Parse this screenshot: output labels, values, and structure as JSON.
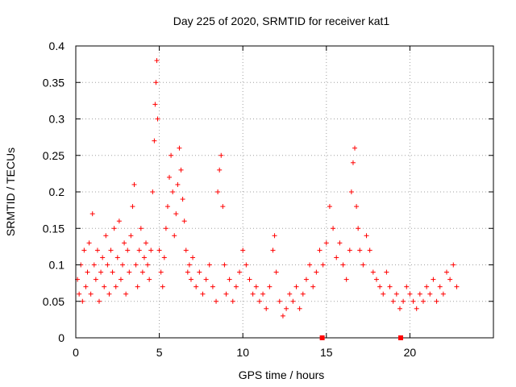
{
  "chart_data": {
    "type": "scatter",
    "title": "Day 225 of 2020, SRMTID for receiver kat1",
    "xlabel": "GPS time / hours",
    "ylabel": "SRMTID / TECUs",
    "xlim": [
      0,
      25
    ],
    "ylim": [
      0,
      0.4
    ],
    "xticks": [
      0,
      5,
      10,
      15,
      20
    ],
    "xtick_labels": [
      "0",
      "5",
      "10",
      "15",
      "20"
    ],
    "yticks": [
      0,
      0.05,
      0.1,
      0.15,
      0.2,
      0.25,
      0.3,
      0.35,
      0.4
    ],
    "ytick_labels": [
      "0",
      "0.05",
      "0.1",
      "0.15",
      "0.2",
      "0.25",
      "0.3",
      "0.35",
      "0.4"
    ],
    "grid": true,
    "marker": "plus",
    "color": "#ff0000",
    "series": [
      {
        "name": "SRMTID",
        "points": [
          [
            0.1,
            0.08
          ],
          [
            0.2,
            0.06
          ],
          [
            0.3,
            0.1
          ],
          [
            0.4,
            0.05
          ],
          [
            0.5,
            0.12
          ],
          [
            0.6,
            0.07
          ],
          [
            0.7,
            0.09
          ],
          [
            0.8,
            0.13
          ],
          [
            0.9,
            0.06
          ],
          [
            1.0,
            0.17
          ],
          [
            1.1,
            0.1
          ],
          [
            1.2,
            0.08
          ],
          [
            1.3,
            0.12
          ],
          [
            1.4,
            0.05
          ],
          [
            1.5,
            0.09
          ],
          [
            1.6,
            0.11
          ],
          [
            1.7,
            0.07
          ],
          [
            1.8,
            0.14
          ],
          [
            1.9,
            0.1
          ],
          [
            2.0,
            0.06
          ],
          [
            2.1,
            0.12
          ],
          [
            2.2,
            0.09
          ],
          [
            2.3,
            0.15
          ],
          [
            2.4,
            0.07
          ],
          [
            2.5,
            0.11
          ],
          [
            2.6,
            0.16
          ],
          [
            2.7,
            0.08
          ],
          [
            2.8,
            0.1
          ],
          [
            2.9,
            0.13
          ],
          [
            3.0,
            0.06
          ],
          [
            3.1,
            0.12
          ],
          [
            3.2,
            0.09
          ],
          [
            3.3,
            0.14
          ],
          [
            3.4,
            0.18
          ],
          [
            3.5,
            0.21
          ],
          [
            3.6,
            0.1
          ],
          [
            3.7,
            0.07
          ],
          [
            3.8,
            0.12
          ],
          [
            3.9,
            0.15
          ],
          [
            4.0,
            0.09
          ],
          [
            4.1,
            0.11
          ],
          [
            4.2,
            0.13
          ],
          [
            4.3,
            0.1
          ],
          [
            4.4,
            0.08
          ],
          [
            4.5,
            0.12
          ],
          [
            4.6,
            0.2
          ],
          [
            4.7,
            0.27
          ],
          [
            4.75,
            0.32
          ],
          [
            4.8,
            0.35
          ],
          [
            4.85,
            0.38
          ],
          [
            4.9,
            0.3
          ],
          [
            5.0,
            0.12
          ],
          [
            5.1,
            0.09
          ],
          [
            5.2,
            0.07
          ],
          [
            5.3,
            0.11
          ],
          [
            5.4,
            0.15
          ],
          [
            5.5,
            0.18
          ],
          [
            5.6,
            0.22
          ],
          [
            5.7,
            0.25
          ],
          [
            5.8,
            0.2
          ],
          [
            5.9,
            0.14
          ],
          [
            6.0,
            0.17
          ],
          [
            6.1,
            0.21
          ],
          [
            6.2,
            0.26
          ],
          [
            6.3,
            0.23
          ],
          [
            6.4,
            0.19
          ],
          [
            6.5,
            0.16
          ],
          [
            6.6,
            0.12
          ],
          [
            6.7,
            0.09
          ],
          [
            6.8,
            0.1
          ],
          [
            6.9,
            0.08
          ],
          [
            7.0,
            0.11
          ],
          [
            7.2,
            0.07
          ],
          [
            7.4,
            0.09
          ],
          [
            7.6,
            0.06
          ],
          [
            7.8,
            0.08
          ],
          [
            8.0,
            0.1
          ],
          [
            8.2,
            0.07
          ],
          [
            8.4,
            0.05
          ],
          [
            8.5,
            0.2
          ],
          [
            8.6,
            0.23
          ],
          [
            8.7,
            0.25
          ],
          [
            8.8,
            0.18
          ],
          [
            8.9,
            0.1
          ],
          [
            9.0,
            0.06
          ],
          [
            9.2,
            0.08
          ],
          [
            9.4,
            0.05
          ],
          [
            9.6,
            0.07
          ],
          [
            9.8,
            0.09
          ],
          [
            10.0,
            0.12
          ],
          [
            10.2,
            0.1
          ],
          [
            10.4,
            0.08
          ],
          [
            10.6,
            0.06
          ],
          [
            10.8,
            0.07
          ],
          [
            11.0,
            0.05
          ],
          [
            11.2,
            0.06
          ],
          [
            11.4,
            0.04
          ],
          [
            11.6,
            0.07
          ],
          [
            11.8,
            0.12
          ],
          [
            11.9,
            0.14
          ],
          [
            12.0,
            0.09
          ],
          [
            12.2,
            0.05
          ],
          [
            12.4,
            0.03
          ],
          [
            12.6,
            0.04
          ],
          [
            12.8,
            0.06
          ],
          [
            13.0,
            0.05
          ],
          [
            13.2,
            0.07
          ],
          [
            13.4,
            0.04
          ],
          [
            13.6,
            0.06
          ],
          [
            13.8,
            0.08
          ],
          [
            14.0,
            0.1
          ],
          [
            14.2,
            0.07
          ],
          [
            14.4,
            0.09
          ],
          [
            14.6,
            0.12
          ],
          [
            14.8,
            0.1
          ],
          [
            15.0,
            0.13
          ],
          [
            15.2,
            0.18
          ],
          [
            15.4,
            0.15
          ],
          [
            15.6,
            0.11
          ],
          [
            15.8,
            0.13
          ],
          [
            16.0,
            0.1
          ],
          [
            16.2,
            0.08
          ],
          [
            16.4,
            0.12
          ],
          [
            16.5,
            0.2
          ],
          [
            16.6,
            0.24
          ],
          [
            16.7,
            0.26
          ],
          [
            16.8,
            0.18
          ],
          [
            16.9,
            0.15
          ],
          [
            17.0,
            0.12
          ],
          [
            17.2,
            0.1
          ],
          [
            17.4,
            0.14
          ],
          [
            17.6,
            0.12
          ],
          [
            17.8,
            0.09
          ],
          [
            18.0,
            0.08
          ],
          [
            18.2,
            0.07
          ],
          [
            18.4,
            0.06
          ],
          [
            18.6,
            0.09
          ],
          [
            18.8,
            0.07
          ],
          [
            19.0,
            0.05
          ],
          [
            19.2,
            0.06
          ],
          [
            19.4,
            0.04
          ],
          [
            19.6,
            0.05
          ],
          [
            19.8,
            0.07
          ],
          [
            20.0,
            0.06
          ],
          [
            20.2,
            0.05
          ],
          [
            20.4,
            0.04
          ],
          [
            20.6,
            0.06
          ],
          [
            20.8,
            0.05
          ],
          [
            21.0,
            0.07
          ],
          [
            21.2,
            0.06
          ],
          [
            21.4,
            0.08
          ],
          [
            21.6,
            0.05
          ],
          [
            21.8,
            0.07
          ],
          [
            22.0,
            0.06
          ],
          [
            22.2,
            0.09
          ],
          [
            22.4,
            0.08
          ],
          [
            22.6,
            0.1
          ],
          [
            22.8,
            0.07
          ]
        ]
      }
    ],
    "markers_on_axis": [
      14.75,
      19.45
    ]
  }
}
